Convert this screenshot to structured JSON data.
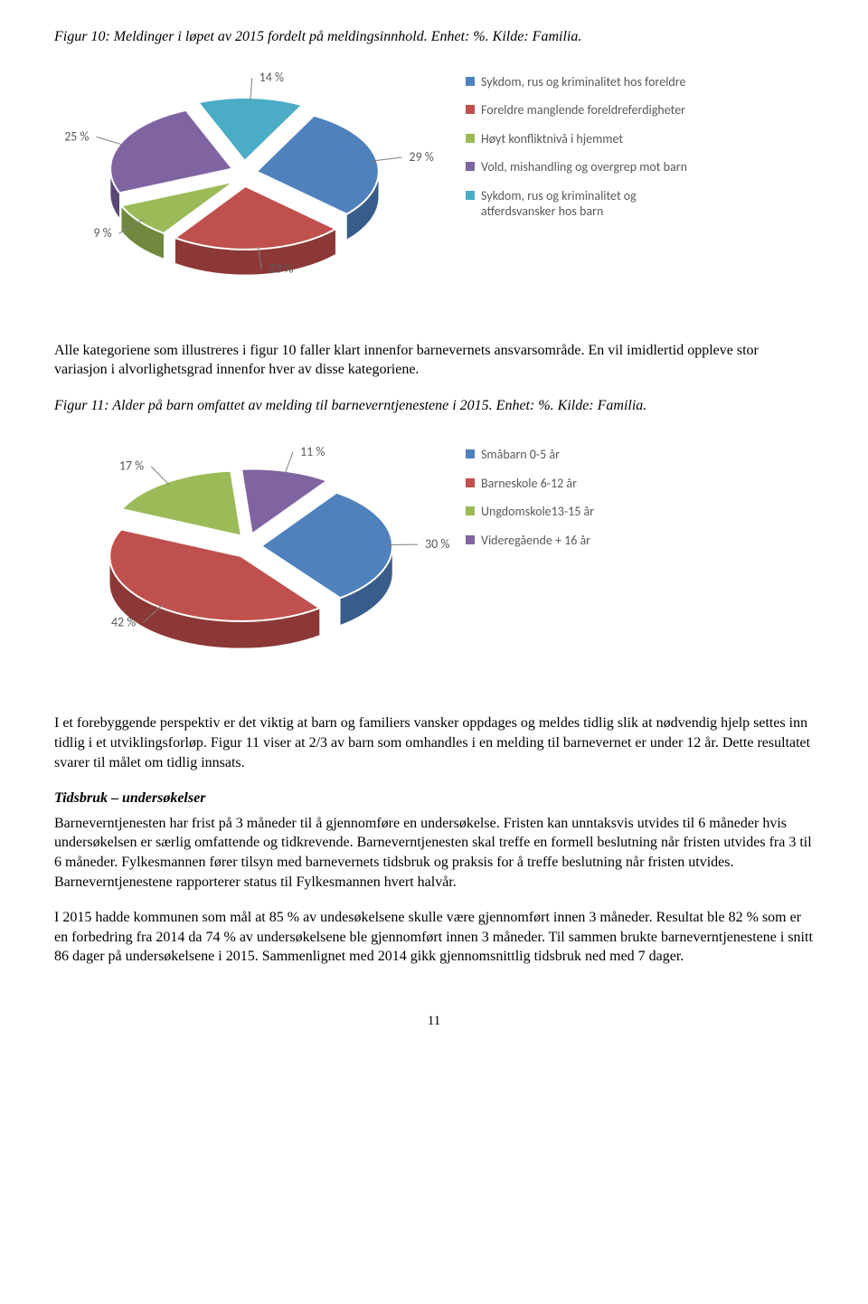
{
  "figure10": {
    "caption": "Figur 10: Meldinger i løpet av 2015 fordelt på meldingsinnhold. Enhet: %. Kilde: Familia.",
    "type": "pie-3d",
    "slices": [
      {
        "label": "29 %",
        "value": 29,
        "color": "#4f81bd",
        "side": "#385d8a"
      },
      {
        "label": "23 %",
        "value": 23,
        "color": "#c0504d",
        "side": "#8c3836"
      },
      {
        "label": "9 %",
        "value": 9,
        "color": "#9bbb59",
        "side": "#71893f"
      },
      {
        "label": "25 %",
        "value": 25,
        "color": "#8064a2",
        "side": "#5c4776"
      },
      {
        "label": "14 %",
        "value": 14,
        "color": "#4bacc6",
        "side": "#357d91"
      }
    ],
    "legend": [
      {
        "color": "#4f81bd",
        "text": "Sykdom, rus og kriminalitet hos foreldre"
      },
      {
        "color": "#c0504d",
        "text": "Foreldre manglende foreldreferdigheter"
      },
      {
        "color": "#9bbb59",
        "text": "Høyt konfliktnivå i hjemmet"
      },
      {
        "color": "#8064a2",
        "text": "Vold, mishandling og overgrep mot barn"
      },
      {
        "color": "#4bacc6",
        "text": "Sykdom, rus og kriminalitet og atferdsvansker hos barn"
      }
    ],
    "label_font": "Calibri",
    "label_color": "#595959",
    "label_size": 14
  },
  "para1": "Alle kategoriene som illustreres i figur 10 faller klart innenfor barnevernets ansvarsområde. En vil imidlertid oppleve stor variasjon i alvorlighetsgrad innenfor hver av disse kategoriene.",
  "figure11": {
    "caption": "Figur 11: Alder på barn omfattet av melding til barneverntjenestene i 2015. Enhet: %. Kilde: Familia.",
    "type": "pie-3d",
    "slices": [
      {
        "label": "30 %",
        "value": 30,
        "color": "#4f81bd",
        "side": "#385d8a"
      },
      {
        "label": "42 %",
        "value": 42,
        "color": "#c0504d",
        "side": "#8c3836"
      },
      {
        "label": "17 %",
        "value": 17,
        "color": "#9bbb59",
        "side": "#71893f"
      },
      {
        "label": "11 %",
        "value": 11,
        "color": "#8064a2",
        "side": "#5c4776"
      }
    ],
    "legend": [
      {
        "color": "#4f81bd",
        "text": "Småbarn 0-5 år"
      },
      {
        "color": "#c0504d",
        "text": "Barneskole 6-12 år"
      },
      {
        "color": "#9bbb59",
        "text": "Ungdomskole13-15 år"
      },
      {
        "color": "#8064a2",
        "text": "Videregående + 16 år"
      }
    ],
    "label_font": "Calibri",
    "label_color": "#595959",
    "label_size": 14
  },
  "para2": "I et forebyggende perspektiv er det viktig at barn og familiers vansker oppdages og meldes tidlig slik at nødvendig hjelp settes inn tidlig i et utviklingsforløp. Figur 11 viser at 2/3 av barn som omhandles i en melding til barnevernet er under 12 år. Dette resultatet svarer til målet om tidlig innsats.",
  "section_title": "Tidsbruk – undersøkelser",
  "para3": "Barneverntjenesten har frist på 3 måneder til å gjennomføre en undersøkelse. Fristen kan unntaksvis utvides til 6 måneder hvis undersøkelsen er særlig omfattende og tidkrevende. Barneverntjenesten skal treffe en formell beslutning når fristen utvides fra 3 til 6 måneder. Fylkesmannen fører tilsyn med barnevernets tidsbruk og praksis for å treffe beslutning når fristen utvides. Barneverntjenestene rapporterer status til Fylkesmannen hvert halvår.",
  "para4": "I 2015 hadde kommunen som mål at 85 % av undesøkelsene skulle være gjennomført innen 3 måneder. Resultat ble 82 % som er en forbedring fra 2014 da 74 % av undersøkelsene ble gjennomført innen 3 måneder. Til sammen brukte barneverntjenestene i snitt 86 dager på undersøkelsene i 2015. Sammenlignet med 2014 gikk gjennomsnittlig tidsbruk ned med 7 dager.",
  "page_number": "11"
}
